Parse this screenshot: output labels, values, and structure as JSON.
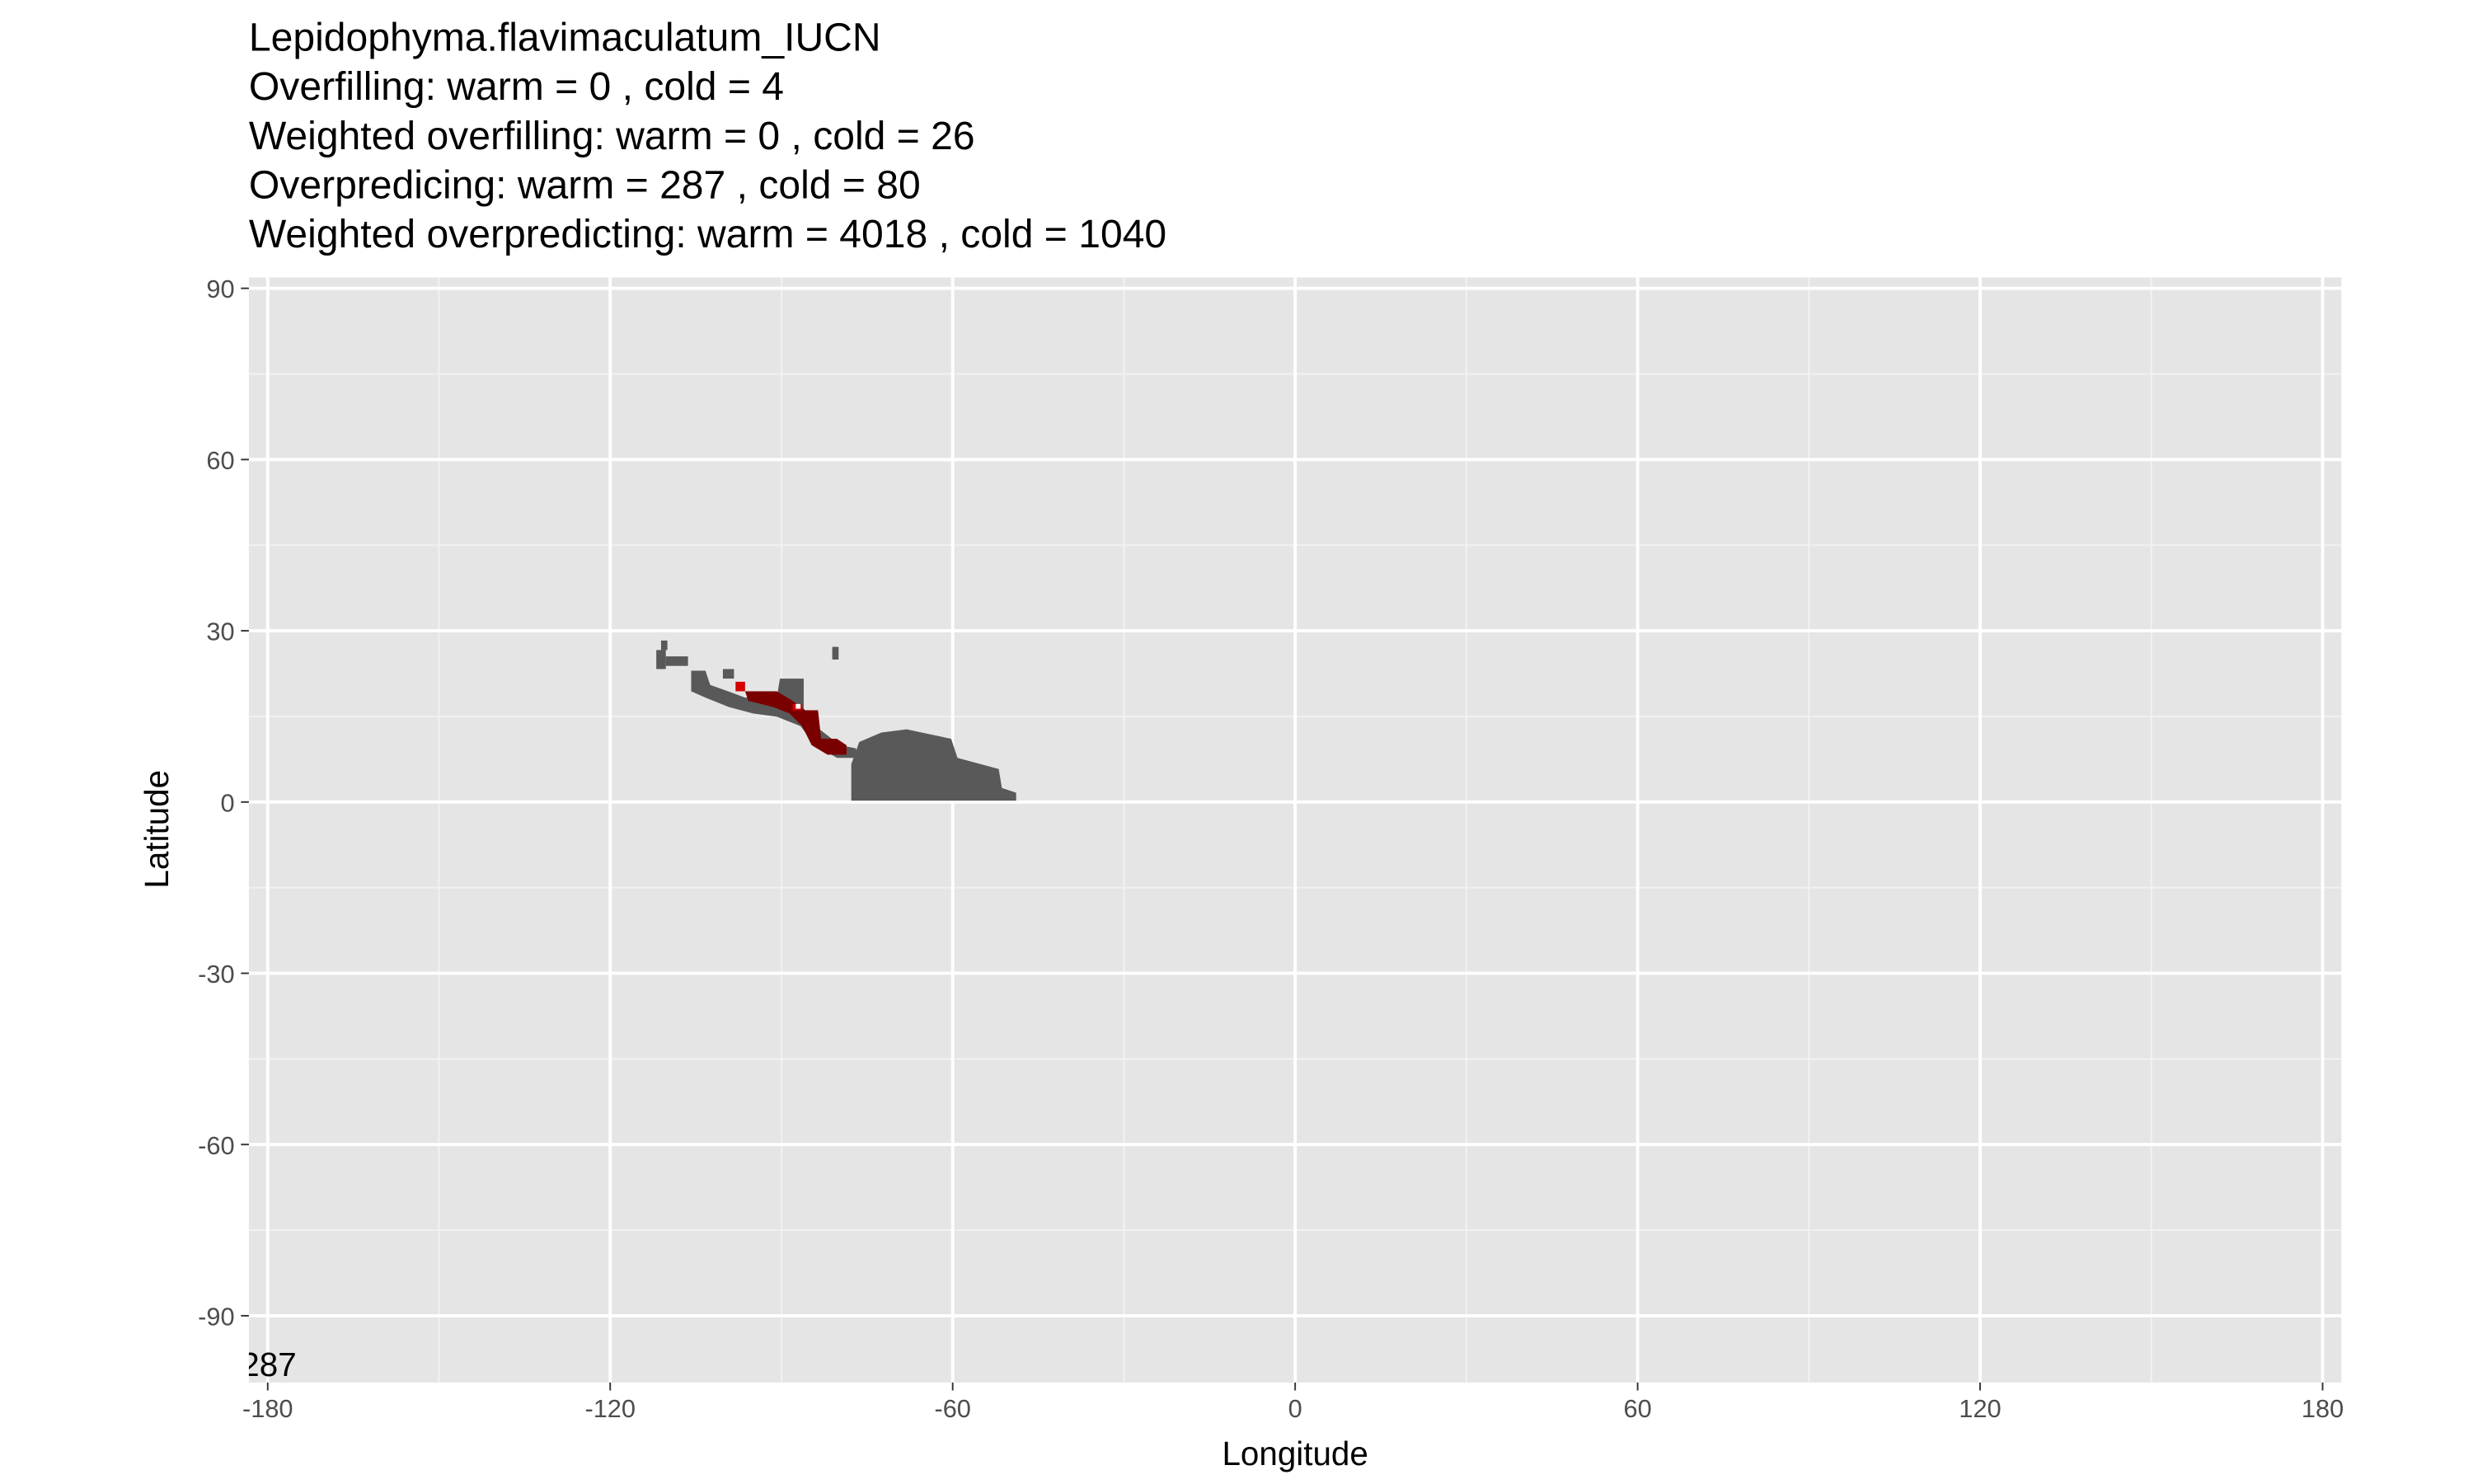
{
  "chart_data": {
    "type": "raster",
    "title": [
      "Lepidophyma.flavimaculatum_IUCN",
      "Overfilling: warm =  0  , cold =  4",
      "Weighted overfilling: warm =  0 , cold =  26",
      "Overpredicing: warm =  287  , cold =  80",
      "Weighted overpredicting: warm =  4018 , cold =  1040"
    ],
    "x_label": "Longitude",
    "y_label": "Latitude",
    "annotation": "287",
    "xlim": [
      -183.3,
      183.3
    ],
    "ylim": [
      -101.7,
      91.9
    ],
    "xticks": [
      -180,
      -120,
      -60,
      0,
      60,
      120,
      180
    ],
    "yticks": [
      90,
      60,
      30,
      0,
      -30,
      -60,
      -90
    ],
    "grid": true
  }
}
